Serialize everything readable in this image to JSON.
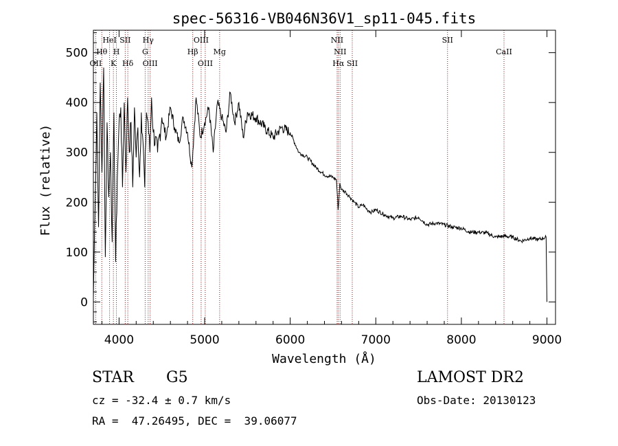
{
  "chart_data": {
    "type": "line",
    "title": "spec-56316-VB046N36V1_sp11-045.fits",
    "xlabel": "Wavelength (Å)",
    "ylabel": "Flux (relative)",
    "xlim": [
      3700,
      9100
    ],
    "ylim": [
      -45,
      545
    ],
    "xticks": [
      4000,
      5000,
      6000,
      7000,
      8000,
      9000
    ],
    "yticks": [
      0,
      100,
      200,
      300,
      400,
      500
    ],
    "line_labels": [
      {
        "text": "OII",
        "wavelength": 3727,
        "row": 3
      },
      {
        "text": "Hθ",
        "wavelength": 3798,
        "row": 1
      },
      {
        "text": "HeI",
        "wavelength": 3889,
        "row": 0
      },
      {
        "text": "K",
        "wavelength": 3934,
        "row": 2
      },
      {
        "text": "H",
        "wavelength": 3969,
        "row": 1
      },
      {
        "text": "SII",
        "wavelength": 4072,
        "row": 0
      },
      {
        "text": "Hδ",
        "wavelength": 4102,
        "row": 2
      },
      {
        "text": "Hγ",
        "wavelength": 4340,
        "row": 0
      },
      {
        "text": "G",
        "wavelength": 4305,
        "row": 1
      },
      {
        "text": "OIII",
        "wavelength": 4363,
        "row": 2
      },
      {
        "text": "OIII",
        "wavelength": 4959,
        "row": 0
      },
      {
        "text": "Hβ",
        "wavelength": 4861,
        "row": 1
      },
      {
        "text": "OIII",
        "wavelength": 5007,
        "row": 2
      },
      {
        "text": "Mg",
        "wavelength": 5175,
        "row": 1
      },
      {
        "text": "NII",
        "wavelength": 6548,
        "row": 0
      },
      {
        "text": "NII",
        "wavelength": 6583,
        "row": 1
      },
      {
        "text": "Hα",
        "wavelength": 6563,
        "row": 2
      },
      {
        "text": "SII",
        "wavelength": 6725,
        "row": 2
      },
      {
        "text": "SII",
        "wavelength": 7838,
        "row": 0
      },
      {
        "text": "CaII",
        "wavelength": 8498,
        "row": 1
      }
    ],
    "marker_lines": [
      3727,
      3798,
      3889,
      3934,
      3969,
      4072,
      4102,
      4305,
      4340,
      4363,
      4861,
      4959,
      5007,
      5175,
      6548,
      6563,
      6583,
      6725,
      7838,
      8498
    ],
    "series": [
      {
        "name": "flux",
        "x": [
          3700,
          3720,
          3740,
          3760,
          3780,
          3800,
          3820,
          3840,
          3860,
          3880,
          3900,
          3920,
          3940,
          3960,
          3980,
          4000,
          4020,
          4040,
          4060,
          4080,
          4100,
          4120,
          4140,
          4160,
          4180,
          4200,
          4220,
          4240,
          4260,
          4280,
          4300,
          4320,
          4340,
          4360,
          4380,
          4400,
          4450,
          4500,
          4550,
          4600,
          4650,
          4700,
          4750,
          4800,
          4850,
          4900,
          4950,
          5000,
          5050,
          5100,
          5150,
          5200,
          5250,
          5300,
          5350,
          5400,
          5450,
          5500,
          5600,
          5700,
          5800,
          5900,
          6000,
          6100,
          6200,
          6300,
          6400,
          6500,
          6540,
          6560,
          6580,
          6600,
          6650,
          6700,
          6750,
          6800,
          6850,
          6900,
          6950,
          7000,
          7100,
          7200,
          7300,
          7400,
          7500,
          7600,
          7700,
          7800,
          7900,
          8000,
          8100,
          8200,
          8300,
          8400,
          8500,
          8600,
          8700,
          8800,
          8900,
          8990,
          9000
        ],
        "values": [
          10,
          200,
          380,
          150,
          440,
          260,
          470,
          90,
          360,
          210,
          300,
          120,
          380,
          80,
          250,
          360,
          390,
          230,
          400,
          260,
          410,
          300,
          360,
          230,
          390,
          290,
          350,
          250,
          380,
          320,
          230,
          380,
          360,
          300,
          410,
          340,
          300,
          370,
          330,
          390,
          350,
          320,
          370,
          340,
          270,
          410,
          330,
          360,
          390,
          300,
          400,
          370,
          340,
          420,
          360,
          400,
          330,
          380,
          370,
          350,
          330,
          350,
          340,
          300,
          290,
          270,
          255,
          250,
          245,
          185,
          238,
          225,
          220,
          210,
          200,
          190,
          195,
          185,
          180,
          185,
          175,
          168,
          172,
          165,
          170,
          155,
          158,
          155,
          150,
          148,
          140,
          140,
          138,
          130,
          132,
          130,
          122,
          128,
          125,
          130,
          0
        ]
      }
    ]
  },
  "info": {
    "class_label": "STAR",
    "subclass": "G5",
    "survey": "LAMOST DR2",
    "redshift": "cz = -32.4 ± 0.7 km/s",
    "obs_date": "Obs-Date: 20130123",
    "coords": "RA =  47.26495, DEC =  39.06077"
  }
}
